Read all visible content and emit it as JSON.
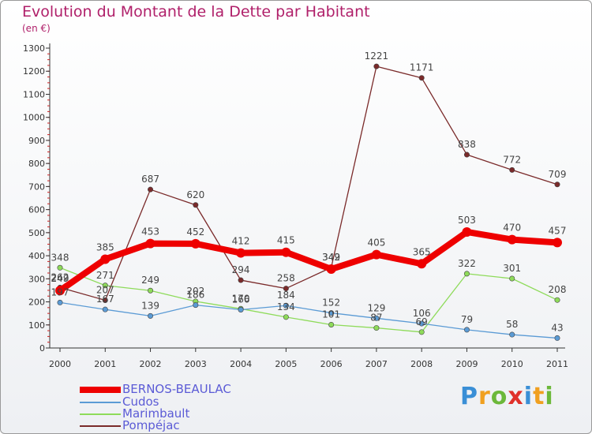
{
  "title": "Evolution du Montant de la Dette par Habitant",
  "subtitle": "(en €)",
  "brand": {
    "text": "Proxiti",
    "letters": [
      {
        "ch": "P",
        "color": "#3a8fd6"
      },
      {
        "ch": "r",
        "color": "#f0a020"
      },
      {
        "ch": "o",
        "color": "#6cb83a"
      },
      {
        "ch": "x",
        "color": "#e0302a"
      },
      {
        "ch": "i",
        "color": "#3a8fd6"
      },
      {
        "ch": "t",
        "color": "#f0a020"
      },
      {
        "ch": "i",
        "color": "#6cb83a"
      }
    ]
  },
  "chart_data": {
    "type": "line",
    "title": "Evolution du Montant de la Dette par Habitant",
    "subtitle": "(en €)",
    "x": [
      "2000",
      "2001",
      "2002",
      "2003",
      "2004",
      "2005",
      "2006",
      "2007",
      "2008",
      "2009",
      "2010",
      "2011"
    ],
    "ylim": [
      0,
      1300
    ],
    "yticks": [
      0,
      100,
      200,
      300,
      400,
      500,
      600,
      700,
      800,
      900,
      1000,
      1100,
      1200,
      1300
    ],
    "grid": false,
    "legend_position": "bottom-left",
    "series": [
      {
        "name": "BERNOS-BEAULAC",
        "color": "#ee0000",
        "values": [
          249,
          385,
          453,
          452,
          412,
          415,
          342,
          405,
          365,
          503,
          470,
          457
        ]
      },
      {
        "name": "Cudos",
        "color": "#5b9bd5",
        "values": [
          197,
          167,
          139,
          186,
          166,
          184,
          152,
          129,
          106,
          79,
          58,
          43
        ]
      },
      {
        "name": "Marimbault",
        "color": "#8edb5a",
        "values": [
          348,
          271,
          249,
          202,
          170,
          134,
          101,
          87,
          69,
          322,
          301,
          208
        ]
      },
      {
        "name": "Pompéjac",
        "color": "#7a2a2a",
        "values": [
          262,
          207,
          687,
          620,
          294,
          258,
          349,
          1221,
          1171,
          838,
          772,
          709
        ]
      }
    ]
  }
}
